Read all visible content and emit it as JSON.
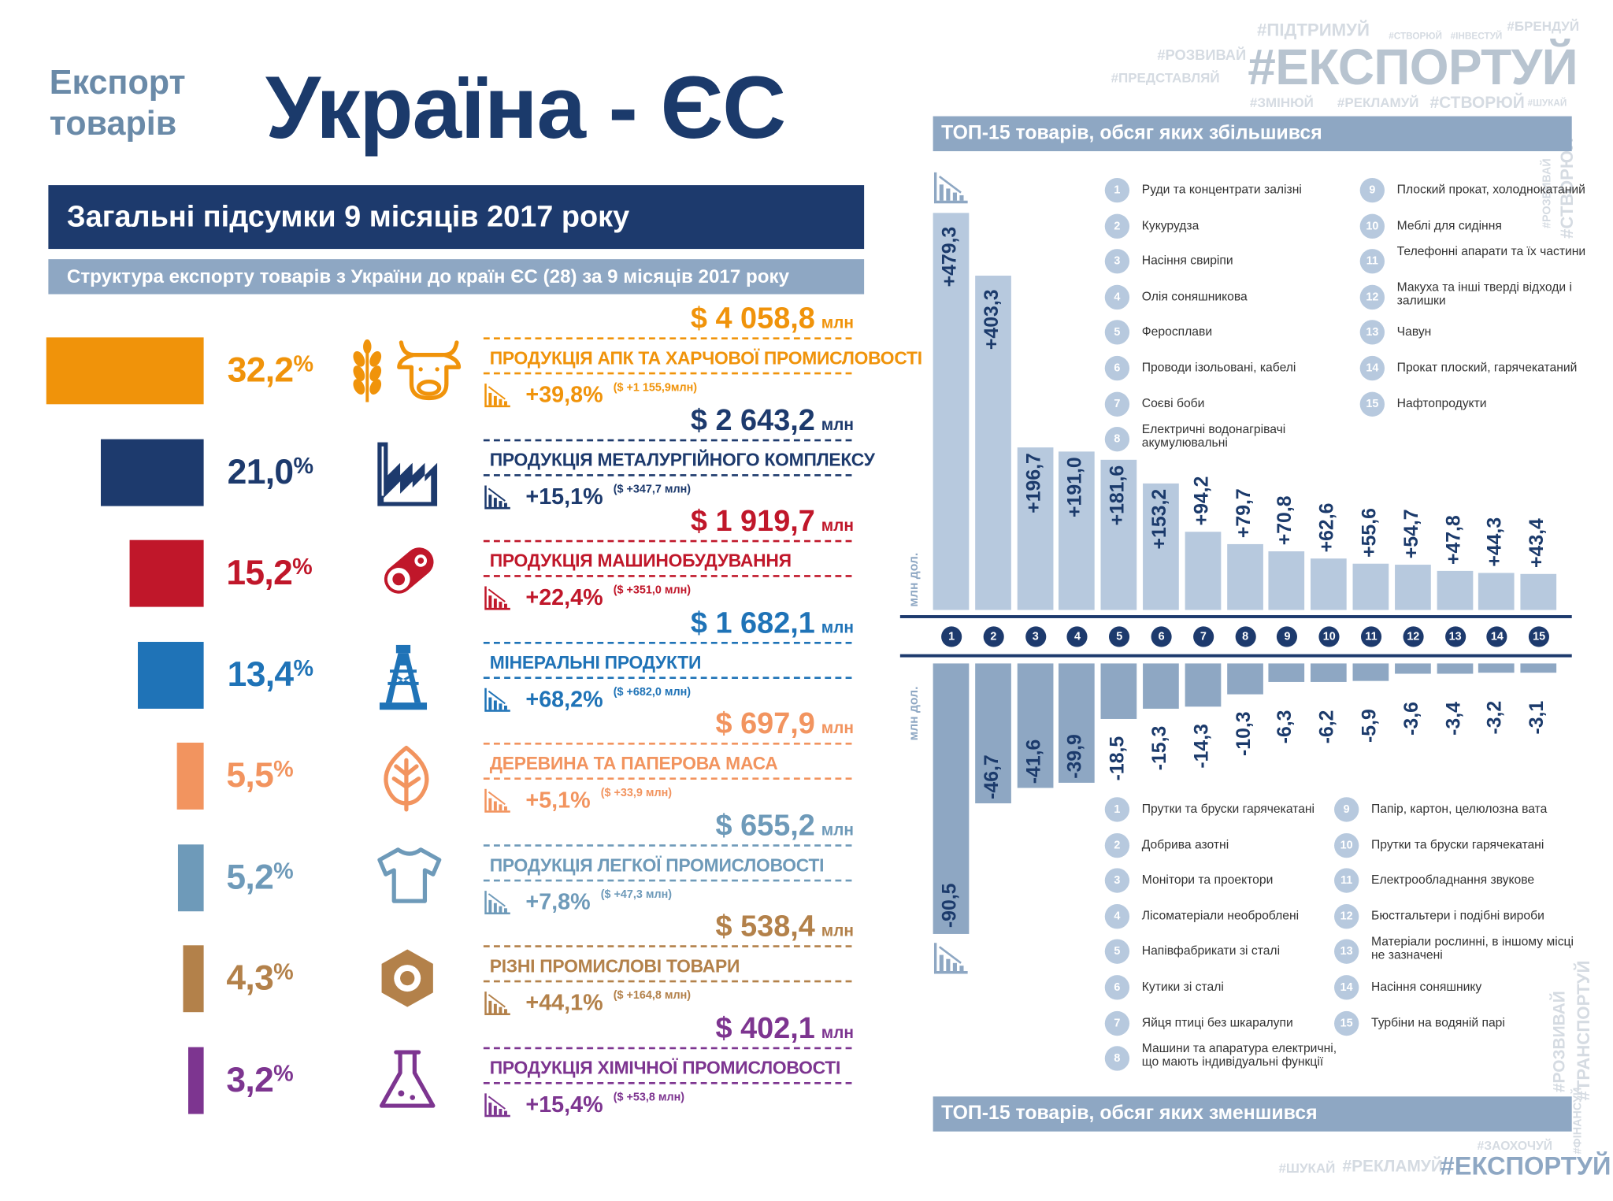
{
  "header": {
    "subtitle_line1": "Експорт",
    "subtitle_line2": "товарів",
    "title": "Україна - ЄС",
    "banner": "Загальні підсумки 9 місяців 2017 року",
    "section_title": "Структура експорту товарів з України  до країн ЄС (28)  за 9 місяців 2017 року"
  },
  "units": {
    "mln": "млн"
  },
  "categories": [
    {
      "share": "32,2",
      "amount": "$ 4 058,8",
      "name": "ПРОДУКЦІЯ АПК ТА ХАРЧОВОЇ ПРОМИСЛОВОСТІ",
      "growth": "+39,8%",
      "growth_abs": "($ +1 155,9млн)",
      "color": "#f0930a",
      "share_value": 32.2,
      "icons": [
        "wheat-icon",
        "cow-icon"
      ]
    },
    {
      "share": "21,0",
      "amount": "$ 2 643,2",
      "name": "ПРОДУКЦІЯ МЕТАЛУРГІЙНОГО КОМПЛЕКСУ",
      "growth": "+15,1%",
      "growth_abs": "($ +347,7 млн)",
      "color": "#1d3a6d",
      "share_value": 21.0,
      "icons": [
        "factory-icon"
      ]
    },
    {
      "share": "15,2",
      "amount": "$ 1 919,7",
      "name": "ПРОДУКЦІЯ МАШИНОБУДУВАННЯ",
      "growth": "+22,4%",
      "growth_abs": "($ +351,0 млн)",
      "color": "#c0172a",
      "share_value": 15.2,
      "icons": [
        "gear-belt-icon"
      ]
    },
    {
      "share": "13,4",
      "amount": "$ 1 682,1",
      "name": "МІНЕРАЛЬНІ ПРОДУКТИ",
      "growth": "+68,2%",
      "growth_abs": "($ +682,0 млн)",
      "color": "#1f73b7",
      "share_value": 13.4,
      "icons": [
        "oil-rig-icon"
      ]
    },
    {
      "share": "5,5",
      "amount": "$ 697,9",
      "name": "ДЕРЕВИНА ТА ПАПЕРОВА МАСА",
      "growth": "+5,1%",
      "growth_abs": "($ +33,9 млн)",
      "color": "#f2945f",
      "share_value": 5.5,
      "icons": [
        "leaf-icon"
      ]
    },
    {
      "share": "5,2",
      "amount": "$ 655,2",
      "name": "ПРОДУКЦІЯ ЛЕГКОЇ ПРОМИСЛОВОСТІ",
      "growth": "+7,8%",
      "growth_abs": "($ +47,3 млн)",
      "color": "#6e9ab9",
      "share_value": 5.2,
      "icons": [
        "tshirt-icon"
      ]
    },
    {
      "share": "4,3",
      "amount": "$ 538,4",
      "name": "РІЗНІ ПРОМИСЛОВІ ТОВАРИ",
      "growth": "+44,1%",
      "growth_abs": "($ +164,8 млн)",
      "color": "#b3814a",
      "share_value": 4.3,
      "icons": [
        "nut-icon"
      ]
    },
    {
      "share": "3,2",
      "amount": "$ 402,1",
      "name": "ПРОДУКЦІЯ ХІМІЧНОЇ ПРОМИСЛОВОСТІ",
      "growth": "+15,4%",
      "growth_abs": "($ +53,8 млн)",
      "color": "#7d3590",
      "share_value": 3.2,
      "icons": [
        "flask-icon"
      ]
    }
  ],
  "hashtags": {
    "main": "#ЕКСПОРТУЙ",
    "top": [
      "#ПІДТРИМУЙ",
      "#СТВОРЮЙ",
      "#ІНВЕСТУЙ",
      "#БРЕНДУЙ",
      "#РОЗВИВАЙ",
      "#ПРЕДСТАВЛЯЙ",
      "#ЗМІНЮЙ",
      "#РЕКЛАМУЙ",
      "#СТВОРЮЙ",
      "#ШУКАЙ"
    ],
    "right_vertical_top": [
      "#РОЗВИВАЙ",
      "#СТВОРЮЙ"
    ],
    "right_vertical_bottom": [
      "#РОЗВИВАЙ",
      "#ФІНАНСУЙ",
      "#ТРАНСПОРТУЙ"
    ],
    "bottom": [
      "#ЗАОХОЧУЙ",
      "#ШУКАЙ",
      "#РЕКЛАМУЙ",
      "#ЕКСПОРТУЙ"
    ]
  },
  "chart_data": [
    {
      "type": "bar",
      "title": "ТОП-15 товарів, обсяг яких збільшився",
      "ylabel": "млн дол.",
      "categories": [
        "1",
        "2",
        "3",
        "4",
        "5",
        "6",
        "7",
        "8",
        "9",
        "10",
        "11",
        "12",
        "13",
        "14",
        "15"
      ],
      "values": [
        479.3,
        403.3,
        196.7,
        191.0,
        181.6,
        153.2,
        94.2,
        79.7,
        70.8,
        62.6,
        55.6,
        54.7,
        47.8,
        44.3,
        43.4
      ],
      "labels": [
        "+479,3",
        "+403,3",
        "+196,7",
        "+191,0",
        "+181,6",
        "+153,2",
        "+94,2",
        "+79,7",
        "+70,8",
        "+62,6",
        "+55,6",
        "+54,7",
        "+47,8",
        "+44,3",
        "+43,4"
      ],
      "legend": [
        "Руди та концентрати залізні",
        "Кукурудза",
        "Насіння свиріпи",
        "Олія соняшникова",
        "Феросплави",
        "Проводи ізольовані, кабелі",
        "Соєві боби",
        "Електричні водонагрівачі акумулювальні",
        "Плоский прокат, холоднокатаний",
        "Меблі для сидіння",
        "Телефонні апарати та їх частини",
        "Макуха та інші тверді відходи і залишки",
        "Чавун",
        "Прокат плоский, гарячекатаний",
        "Нафтопродукти"
      ]
    },
    {
      "type": "bar",
      "title": "ТОП-15 товарів, обсяг яких зменшився",
      "ylabel": "млн дол.",
      "categories": [
        "1",
        "2",
        "3",
        "4",
        "5",
        "6",
        "7",
        "8",
        "9",
        "10",
        "11",
        "12",
        "13",
        "14",
        "15"
      ],
      "values": [
        -90.5,
        -46.7,
        -41.6,
        -39.9,
        -18.5,
        -15.3,
        -14.3,
        -10.3,
        -6.3,
        -6.2,
        -5.9,
        -3.6,
        -3.4,
        -3.2,
        -3.1
      ],
      "labels": [
        "-90,5",
        "-46,7",
        "-41,6",
        "-39,9",
        "-18,5",
        "-15,3",
        "-14,3",
        "-10,3",
        "-6,3",
        "-6,2",
        "-5,9",
        "-3,6",
        "-3,4",
        "-3,2",
        "-3,1"
      ],
      "legend": [
        "Прутки та бруски гарячекатані",
        "Добрива азотні",
        "Монітори та проектори",
        "Лісоматеріали необроблені",
        "Напівфабрикати зі сталі",
        "Кутики зі сталі",
        "Яйця птиці без шкаралупи",
        "Машини та апаратура електричні, що мають індивідуальні функції",
        "Папір, картон, целюлозна вата",
        "Прутки та бруски гарячекатані",
        "Електрообладнання звукове",
        "Бюстгальтери і подібні вироби",
        "Матеріали рослинні, в іншому місці не зазначені",
        "Насіння соняшнику",
        "Турбіни на водяній парі"
      ]
    }
  ]
}
